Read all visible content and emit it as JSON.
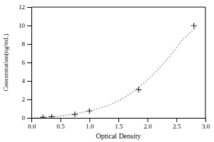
{
  "chart_data": {
    "type": "line",
    "xlabel": "Optical Density",
    "ylabel": "Concentration(ng/mL)",
    "xlim": [
      0,
      3.0
    ],
    "ylim": [
      0,
      12
    ],
    "xticks": [
      {
        "value": 0,
        "label": "0.0"
      },
      0.5,
      {
        "value": 1.0,
        "label": "1.0"
      },
      1.5,
      {
        "value": 2.0,
        "label": "2.0"
      },
      2.5,
      {
        "value": 3.0,
        "label": "3.0"
      }
    ],
    "yticks": [
      0,
      2,
      4,
      6,
      8,
      10,
      12
    ],
    "grid": false,
    "series": [
      {
        "type": "line",
        "line_style": "dotted",
        "color": "#888888",
        "x": [
          0.05,
          0.1,
          0.15,
          0.2,
          0.3,
          0.4,
          0.5,
          0.6,
          0.7,
          0.8,
          0.9,
          1.0,
          1.1,
          1.2,
          1.3,
          1.4,
          1.5,
          1.6,
          1.7,
          1.8,
          1.9,
          2.0,
          2.1,
          2.2,
          2.3,
          2.4,
          2.5,
          2.6,
          2.7,
          2.8,
          2.85
        ],
        "values": [
          0.01,
          0.02,
          0.04,
          0.06,
          0.1,
          0.15,
          0.2,
          0.28,
          0.38,
          0.5,
          0.62,
          0.75,
          0.9,
          1.1,
          1.3,
          1.55,
          1.85,
          2.2,
          2.6,
          3.05,
          3.55,
          4.1,
          4.7,
          5.35,
          6.05,
          6.8,
          7.6,
          8.45,
          9.0,
          9.6,
          10.0
        ]
      },
      {
        "type": "scatter",
        "marker": "plus",
        "color": "#333333",
        "x": [
          0.2,
          0.35,
          0.75,
          1.0,
          1.85,
          2.8
        ],
        "values": [
          0.06,
          0.12,
          0.38,
          0.75,
          3.05,
          10.0
        ]
      }
    ]
  }
}
